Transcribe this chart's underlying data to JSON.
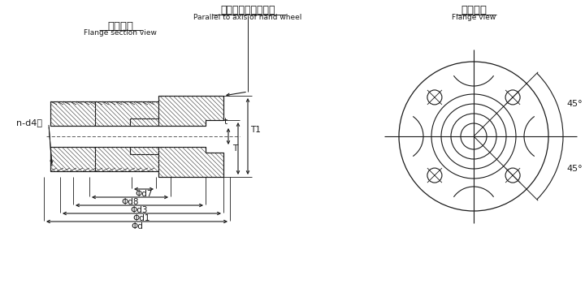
{
  "bg_color": "#ffffff",
  "line_color": "#1a1a1a",
  "title_left_cn": "法兰剖面",
  "title_left_en": "Flange section view",
  "title_top_cn": "与手轮轴中心线平行",
  "title_top_en": "Parallel to axis of hand wheel",
  "title_right_cn": "法兰向视",
  "title_right_en": "Flange view",
  "side_label": "n-d4深",
  "dim_labels": [
    "Φd7",
    "Φd8",
    "Φd3",
    "Φd1",
    "Φd"
  ],
  "vert_t": "t",
  "vert_T": "T",
  "vert_T1": "T1",
  "deg45": "45°"
}
